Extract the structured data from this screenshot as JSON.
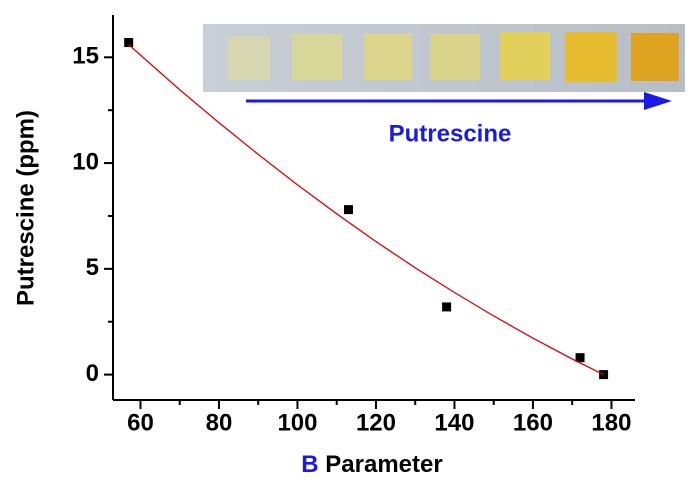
{
  "chart_data": {
    "type": "scatter",
    "xlabel": {
      "symbol": "B",
      "text": "Parameter"
    },
    "ylabel": "Putrescine (ppm)",
    "annotation": "Putrescine",
    "xlim": [
      53,
      186
    ],
    "ylim": [
      -1.2,
      17
    ],
    "xticks": [
      60,
      80,
      100,
      120,
      140,
      160,
      180
    ],
    "xminorticks": [
      70,
      90,
      110,
      130,
      150,
      170
    ],
    "yticks": [
      0,
      5,
      10,
      15
    ],
    "yminorticks": [
      2.5,
      7.5,
      12.5
    ],
    "series": [
      {
        "kind": "points",
        "color": "#000000",
        "x": [
          57,
          113,
          138,
          172,
          178
        ],
        "values": [
          15.7,
          7.8,
          3.2,
          0.8,
          0
        ]
      },
      {
        "kind": "line",
        "color": "#e00000",
        "x": [
          57,
          70,
          80,
          90,
          100,
          110,
          120,
          130,
          140,
          150,
          160,
          170,
          178
        ],
        "values": [
          15.6,
          13.47,
          11.91,
          10.41,
          8.97,
          7.6,
          6.29,
          5.05,
          3.88,
          2.77,
          1.72,
          0.74,
          0
        ]
      }
    ]
  }
}
